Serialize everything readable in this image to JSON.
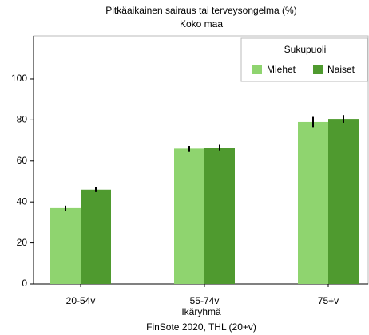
{
  "chart_data": {
    "type": "bar",
    "title": "Pitkäaikainen sairaus tai terveysongelma (%)",
    "subtitle": "Koko maa",
    "x_label": "Ikäryhmä",
    "caption": "FinSote 2020, THL (20+v)",
    "categories": [
      "20-54v",
      "55-74v",
      "75+v"
    ],
    "series": [
      {
        "name": "Miehet",
        "color": "#8fd46f",
        "values": [
          37,
          66,
          79
        ],
        "errors": [
          1.2,
          1.3,
          2.5
        ]
      },
      {
        "name": "Naiset",
        "color": "#4f9a2f",
        "values": [
          46,
          66.5,
          80.5
        ],
        "errors": [
          1.2,
          1.4,
          1.9
        ]
      }
    ],
    "legend_title": "Sukupuoli",
    "legend": "top-right",
    "ylim": [
      0,
      121
    ],
    "yticks": [
      0,
      20,
      40,
      60,
      80,
      100
    ],
    "grid": false
  }
}
